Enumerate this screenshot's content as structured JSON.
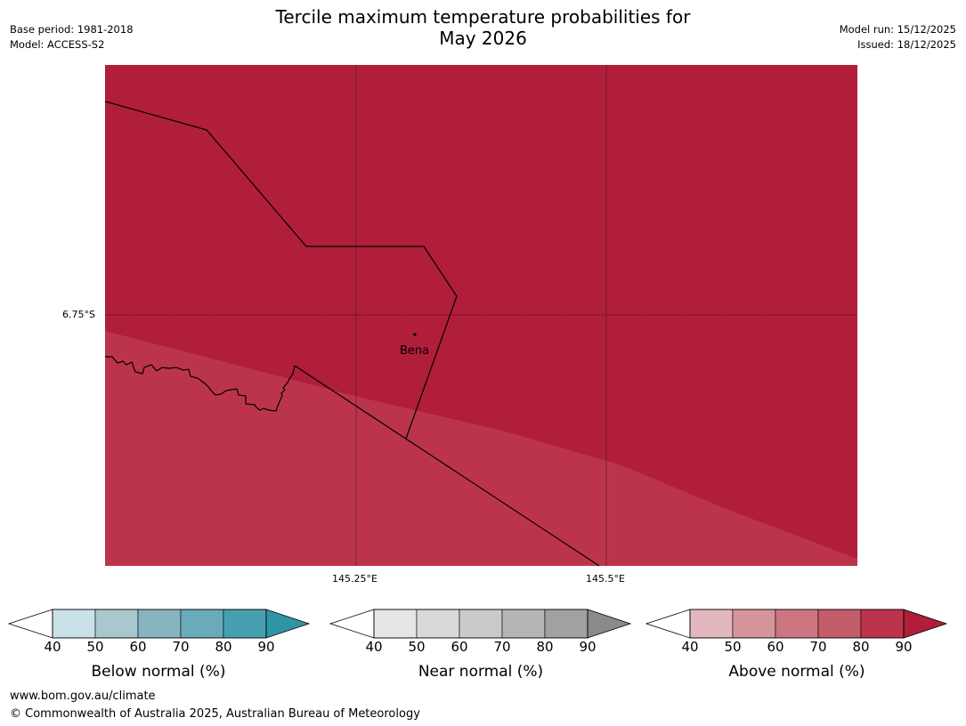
{
  "header": {
    "title_line1": "Tercile maximum temperature probabilities for",
    "title_line2": "May 2026",
    "base_period": "Base period: 1981-2018",
    "model": "Model: ACCESS-S2",
    "model_run": "Model run: 15/12/2025",
    "issued": "Issued: 18/12/2025"
  },
  "map": {
    "place_label": "Bena",
    "lat_label": "6.75°S",
    "lon_labels": [
      "145.25°E",
      "145.5°E"
    ],
    "colors": {
      "above_90": "#b01e3a",
      "above_80": "#bc344b",
      "border": "#000000",
      "grid": "#5a1a24"
    }
  },
  "colorbars": [
    {
      "name": "below",
      "label": "Below normal (%)",
      "ticks": [
        "40",
        "50",
        "60",
        "70",
        "80",
        "90"
      ],
      "colors": [
        "#cae2e7",
        "#a8c8ce",
        "#88b4c0",
        "#6aabbb",
        "#47a0af",
        "#2f95a6"
      ]
    },
    {
      "name": "near",
      "label": "Near normal (%)",
      "ticks": [
        "40",
        "50",
        "60",
        "70",
        "80",
        "90"
      ],
      "colors": [
        "#e6e6e6",
        "#d9d9d9",
        "#cacaca",
        "#b6b6b6",
        "#a1a1a1",
        "#8a8a8a"
      ]
    },
    {
      "name": "above",
      "label": "Above normal (%)",
      "ticks": [
        "40",
        "50",
        "60",
        "70",
        "80",
        "90"
      ],
      "colors": [
        "#e2b7bd",
        "#d6959d",
        "#cb7680",
        "#c35c69",
        "#bc344b",
        "#b01e3a"
      ]
    }
  ],
  "footer": {
    "url": "www.bom.gov.au/climate",
    "copyright": "© Commonwealth of Australia 2025, Australian Bureau of Meteorology"
  }
}
